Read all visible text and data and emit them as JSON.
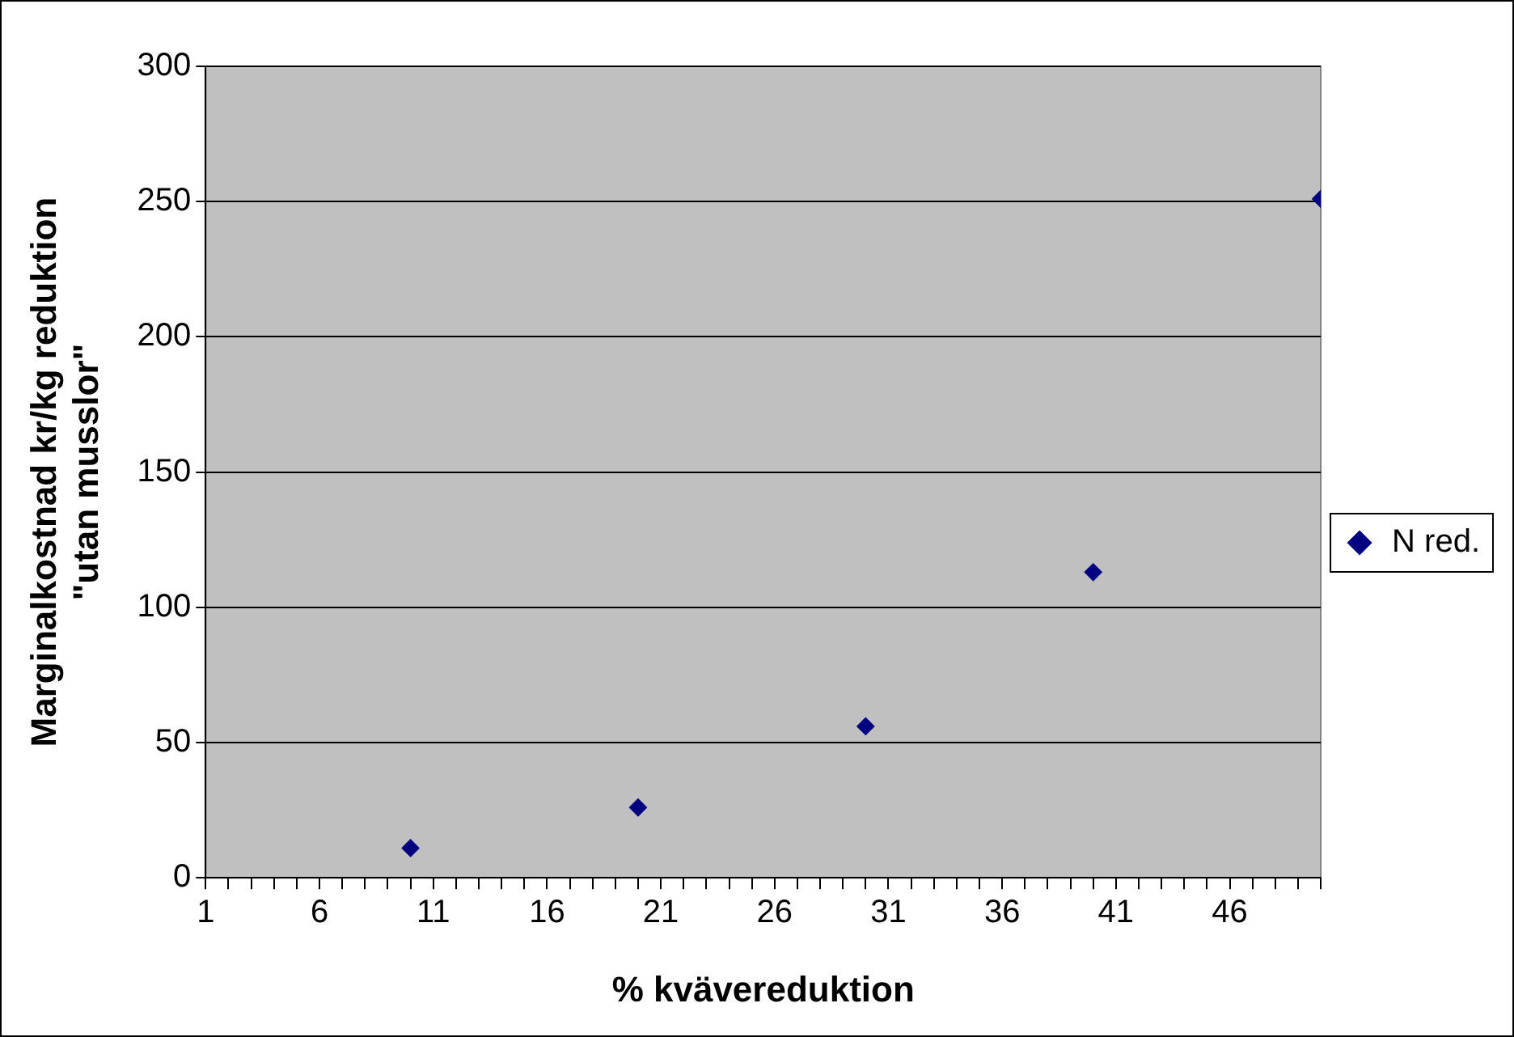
{
  "chart_data": {
    "type": "scatter",
    "xlabel": "% kvävereduktion",
    "ylabel": "Marginalkostnad kr/kg reduktion\n\"utan musslor\"",
    "series": [
      {
        "name": "N red.",
        "color": "#000080",
        "x": [
          10,
          20,
          30,
          40,
          50
        ],
        "values": [
          11,
          26,
          56,
          113,
          251
        ]
      }
    ],
    "xlim": [
      1,
      50
    ],
    "xticks": [
      1,
      {
        "value": 2,
        "label": null
      },
      {
        "value": 3,
        "label": null
      },
      {
        "value": 4,
        "label": null
      },
      {
        "value": 5,
        "label": null
      },
      6,
      {
        "value": 7,
        "label": null
      },
      {
        "value": 8,
        "label": null
      },
      {
        "value": 9,
        "label": null
      },
      {
        "value": 10,
        "label": null
      },
      11,
      {
        "value": 12,
        "label": null
      },
      {
        "value": 13,
        "label": null
      },
      {
        "value": 14,
        "label": null
      },
      {
        "value": 15,
        "label": null
      },
      16,
      {
        "value": 17,
        "label": null
      },
      {
        "value": 18,
        "label": null
      },
      {
        "value": 19,
        "label": null
      },
      {
        "value": 20,
        "label": null
      },
      21,
      {
        "value": 22,
        "label": null
      },
      {
        "value": 23,
        "label": null
      },
      {
        "value": 24,
        "label": null
      },
      {
        "value": 25,
        "label": null
      },
      26,
      {
        "value": 27,
        "label": null
      },
      {
        "value": 28,
        "label": null
      },
      {
        "value": 29,
        "label": null
      },
      {
        "value": 30,
        "label": null
      },
      31,
      {
        "value": 32,
        "label": null
      },
      {
        "value": 33,
        "label": null
      },
      {
        "value": 34,
        "label": null
      },
      {
        "value": 35,
        "label": null
      },
      36,
      {
        "value": 37,
        "label": null
      },
      {
        "value": 38,
        "label": null
      },
      {
        "value": 39,
        "label": null
      },
      {
        "value": 40,
        "label": null
      },
      41,
      {
        "value": 42,
        "label": null
      },
      {
        "value": 43,
        "label": null
      },
      {
        "value": 44,
        "label": null
      },
      {
        "value": 45,
        "label": null
      },
      46,
      {
        "value": 47,
        "label": null
      },
      {
        "value": 48,
        "label": null
      },
      {
        "value": 49,
        "label": null
      },
      {
        "value": 50,
        "label": null
      }
    ],
    "ylim": [
      0,
      300
    ],
    "yticks": [
      0,
      50,
      100,
      150,
      200,
      250,
      300
    ],
    "grid": "y",
    "legend": "right",
    "marker": "diamond"
  }
}
